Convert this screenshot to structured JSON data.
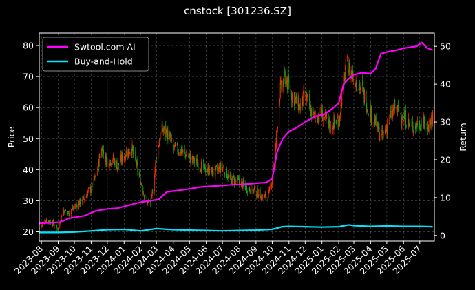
{
  "chart_data": {
    "type": "line",
    "title": "cnstock [301236.SZ]",
    "xlabel": "",
    "ylabel_left": "Price",
    "ylabel_right": "Return",
    "background": "#000000",
    "grid": true,
    "legend_position": "top-left",
    "ylim_left": [
      17,
      84
    ],
    "ylim_right": [
      -1.5,
      53.5
    ],
    "yticks_left": [
      20,
      30,
      40,
      50,
      60,
      70,
      80
    ],
    "yticks_right": [
      0,
      10,
      20,
      30,
      40,
      50
    ],
    "x_start": "2023-07-28",
    "x_end": "2025-07-28",
    "x_ticks": [
      "2023-08",
      "2023-09",
      "2023-10",
      "2023-11",
      "2023-12",
      "2024-01",
      "2024-02",
      "2024-03",
      "2024-04",
      "2024-05",
      "2024-06",
      "2024-07",
      "2024-08",
      "2024-09",
      "2024-10",
      "2024-11",
      "2024-12",
      "2025-01",
      "2025-02",
      "2025-03",
      "2025-04",
      "2025-05",
      "2025-06",
      "2025-07"
    ],
    "candle_colors": {
      "up": "#ff2a00",
      "down": "#14a014"
    },
    "price": {
      "dates": [
        "2023-08-01",
        "2023-08-10",
        "2023-08-20",
        "2023-09-01",
        "2023-09-10",
        "2023-09-20",
        "2023-10-01",
        "2023-10-15",
        "2023-11-01",
        "2023-11-10",
        "2023-11-20",
        "2023-12-01",
        "2023-12-10",
        "2023-12-20",
        "2024-01-01",
        "2024-01-15",
        "2024-02-01",
        "2024-02-10",
        "2024-02-20",
        "2024-03-01",
        "2024-03-10",
        "2024-03-20",
        "2024-04-01",
        "2024-04-15",
        "2024-05-01",
        "2024-05-15",
        "2024-06-01",
        "2024-06-15",
        "2024-07-01",
        "2024-07-15",
        "2024-08-01",
        "2024-08-15",
        "2024-09-01",
        "2024-09-15",
        "2024-09-25",
        "2024-10-05",
        "2024-10-15",
        "2024-10-25",
        "2024-11-05",
        "2024-11-20",
        "2024-12-01",
        "2024-12-15",
        "2025-01-01",
        "2025-01-15",
        "2025-02-01",
        "2025-02-15",
        "2025-03-01",
        "2025-03-15",
        "2025-04-01",
        "2025-04-10",
        "2025-04-20",
        "2025-05-01",
        "2025-05-15",
        "2025-06-01",
        "2025-06-15",
        "2025-07-01",
        "2025-07-15",
        "2025-07-25"
      ],
      "values": [
        22,
        24,
        23,
        21,
        27,
        26,
        28,
        30,
        34,
        38,
        47,
        42,
        44,
        41,
        45,
        47,
        36,
        30,
        29,
        45,
        53,
        52,
        47,
        46,
        44,
        42,
        40,
        39,
        41,
        37,
        36,
        34,
        33,
        31,
        32,
        42,
        65,
        70,
        65,
        60,
        64,
        57,
        58,
        54,
        56,
        74,
        70,
        66,
        58,
        55,
        50,
        54,
        60,
        57,
        54,
        55,
        54,
        57
      ]
    },
    "series": [
      {
        "name": "Swtool.com AI",
        "color": "#ff00ff",
        "dates": [
          "2023-07-28",
          "2023-09-05",
          "2023-09-20",
          "2023-10-20",
          "2023-11-10",
          "2023-12-01",
          "2023-12-20",
          "2024-01-10",
          "2024-02-01",
          "2024-02-20",
          "2024-03-05",
          "2024-03-20",
          "2024-04-05",
          "2024-05-01",
          "2024-05-20",
          "2024-06-10",
          "2024-07-01",
          "2024-07-20",
          "2024-08-10",
          "2024-09-01",
          "2024-09-20",
          "2024-10-01",
          "2024-10-10",
          "2024-10-20",
          "2024-11-01",
          "2024-11-15",
          "2024-12-01",
          "2024-12-20",
          "2025-01-05",
          "2025-01-20",
          "2025-02-01",
          "2025-02-10",
          "2025-02-20",
          "2025-03-01",
          "2025-03-15",
          "2025-04-01",
          "2025-04-10",
          "2025-04-20",
          "2025-05-01",
          "2025-05-20",
          "2025-06-01",
          "2025-06-15",
          "2025-06-25",
          "2025-07-05",
          "2025-07-15",
          "2025-07-25"
        ],
        "values": [
          3.2,
          3.5,
          4.5,
          5.2,
          6.5,
          7.0,
          7.2,
          8.0,
          8.8,
          9.2,
          9.5,
          11.5,
          11.8,
          12.3,
          12.8,
          13.0,
          13.2,
          13.4,
          13.5,
          13.8,
          14.0,
          15.0,
          22.0,
          25.5,
          27.5,
          28.5,
          30.0,
          31.5,
          32.0,
          33.5,
          35.0,
          40.0,
          41.5,
          42.5,
          43.0,
          42.8,
          44.0,
          48.0,
          48.5,
          49.0,
          49.5,
          49.8,
          50.0,
          51.0,
          49.5,
          49.0
        ]
      },
      {
        "name": "Buy-and-Hold",
        "color": "#00e5ff",
        "dates": [
          "2023-07-28",
          "2023-09-01",
          "2023-10-01",
          "2023-11-01",
          "2023-12-01",
          "2024-01-01",
          "2024-02-01",
          "2024-03-01",
          "2024-04-01",
          "2024-05-01",
          "2024-06-01",
          "2024-07-01",
          "2024-08-01",
          "2024-09-01",
          "2024-10-01",
          "2024-10-20",
          "2024-11-01",
          "2024-12-01",
          "2025-01-01",
          "2025-02-01",
          "2025-02-20",
          "2025-03-01",
          "2025-04-01",
          "2025-05-01",
          "2025-06-01",
          "2025-07-01",
          "2025-07-25"
        ],
        "values": [
          0.8,
          0.8,
          0.9,
          1.2,
          1.5,
          1.6,
          1.2,
          1.8,
          1.5,
          1.4,
          1.3,
          1.2,
          1.3,
          1.4,
          1.6,
          2.3,
          2.4,
          2.3,
          2.2,
          2.3,
          2.8,
          2.6,
          2.4,
          2.5,
          2.4,
          2.4,
          2.3
        ]
      }
    ]
  }
}
